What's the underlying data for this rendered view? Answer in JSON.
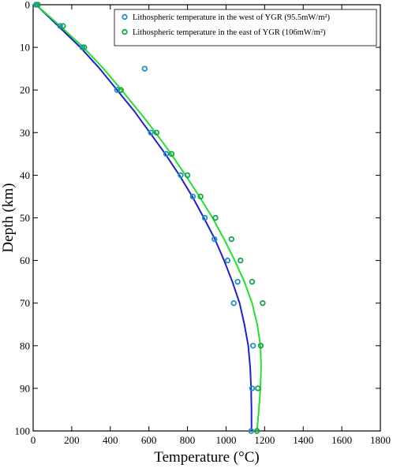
{
  "chart_data": {
    "type": "scatter",
    "xlabel": "Temperature (°C)",
    "ylabel": "Depth (km)",
    "xlim": [
      0,
      1800
    ],
    "ylim": [
      0,
      100
    ],
    "y_inverted": true,
    "x_ticks": [
      0,
      200,
      400,
      600,
      800,
      1000,
      1200,
      1400,
      1600,
      1800
    ],
    "y_ticks": [
      0,
      10,
      20,
      30,
      40,
      50,
      60,
      70,
      80,
      90,
      100
    ],
    "grid": false,
    "legend_position": "top-right",
    "series": [
      {
        "name": "Lithospheric temperature in the west of YGR (95.5mW/m²)",
        "marker_color": "#1f8fc9",
        "line_color": "#1f1fcc",
        "points": [
          {
            "x": 15,
            "y": 0
          },
          {
            "x": 140,
            "y": 5
          },
          {
            "x": 255,
            "y": 10
          },
          {
            "x": 578,
            "y": 15
          },
          {
            "x": 435,
            "y": 20
          },
          {
            "x": 610,
            "y": 30
          },
          {
            "x": 690,
            "y": 35
          },
          {
            "x": 765,
            "y": 40
          },
          {
            "x": 828,
            "y": 45
          },
          {
            "x": 890,
            "y": 50
          },
          {
            "x": 940,
            "y": 55
          },
          {
            "x": 1008,
            "y": 60
          },
          {
            "x": 1060,
            "y": 65
          },
          {
            "x": 1040,
            "y": 70
          },
          {
            "x": 1140,
            "y": 80
          },
          {
            "x": 1135,
            "y": 90
          },
          {
            "x": 1130,
            "y": 100
          }
        ],
        "curve": [
          {
            "x": 15,
            "y": 0
          },
          {
            "x": 130,
            "y": 5
          },
          {
            "x": 245,
            "y": 10
          },
          {
            "x": 345,
            "y": 15
          },
          {
            "x": 435,
            "y": 20
          },
          {
            "x": 525,
            "y": 25
          },
          {
            "x": 605,
            "y": 30
          },
          {
            "x": 685,
            "y": 35
          },
          {
            "x": 758,
            "y": 40
          },
          {
            "x": 825,
            "y": 45
          },
          {
            "x": 885,
            "y": 50
          },
          {
            "x": 942,
            "y": 55
          },
          {
            "x": 990,
            "y": 60
          },
          {
            "x": 1033,
            "y": 65
          },
          {
            "x": 1070,
            "y": 70
          },
          {
            "x": 1095,
            "y": 75
          },
          {
            "x": 1115,
            "y": 80
          },
          {
            "x": 1125,
            "y": 85
          },
          {
            "x": 1130,
            "y": 90
          },
          {
            "x": 1132,
            "y": 95
          },
          {
            "x": 1132,
            "y": 100
          }
        ]
      },
      {
        "name": "Lithospheric temperature in the east of YGR (106mW/m²)",
        "marker_color": "#16a34a",
        "line_color": "#22e02e",
        "points": [
          {
            "x": 25,
            "y": 0
          },
          {
            "x": 155,
            "y": 5
          },
          {
            "x": 265,
            "y": 10
          },
          {
            "x": 455,
            "y": 20
          },
          {
            "x": 640,
            "y": 30
          },
          {
            "x": 718,
            "y": 35
          },
          {
            "x": 800,
            "y": 40
          },
          {
            "x": 868,
            "y": 45
          },
          {
            "x": 945,
            "y": 50
          },
          {
            "x": 1028,
            "y": 55
          },
          {
            "x": 1075,
            "y": 60
          },
          {
            "x": 1135,
            "y": 65
          },
          {
            "x": 1190,
            "y": 70
          },
          {
            "x": 1180,
            "y": 80
          },
          {
            "x": 1165,
            "y": 90
          },
          {
            "x": 1160,
            "y": 100
          }
        ],
        "curve": [
          {
            "x": 15,
            "y": 0
          },
          {
            "x": 140,
            "y": 5
          },
          {
            "x": 260,
            "y": 10
          },
          {
            "x": 365,
            "y": 15
          },
          {
            "x": 458,
            "y": 20
          },
          {
            "x": 548,
            "y": 25
          },
          {
            "x": 635,
            "y": 30
          },
          {
            "x": 715,
            "y": 35
          },
          {
            "x": 790,
            "y": 40
          },
          {
            "x": 862,
            "y": 45
          },
          {
            "x": 930,
            "y": 50
          },
          {
            "x": 990,
            "y": 55
          },
          {
            "x": 1045,
            "y": 60
          },
          {
            "x": 1095,
            "y": 65
          },
          {
            "x": 1135,
            "y": 70
          },
          {
            "x": 1162,
            "y": 75
          },
          {
            "x": 1178,
            "y": 80
          },
          {
            "x": 1182,
            "y": 85
          },
          {
            "x": 1178,
            "y": 90
          },
          {
            "x": 1170,
            "y": 95
          },
          {
            "x": 1160,
            "y": 100
          }
        ]
      }
    ]
  }
}
